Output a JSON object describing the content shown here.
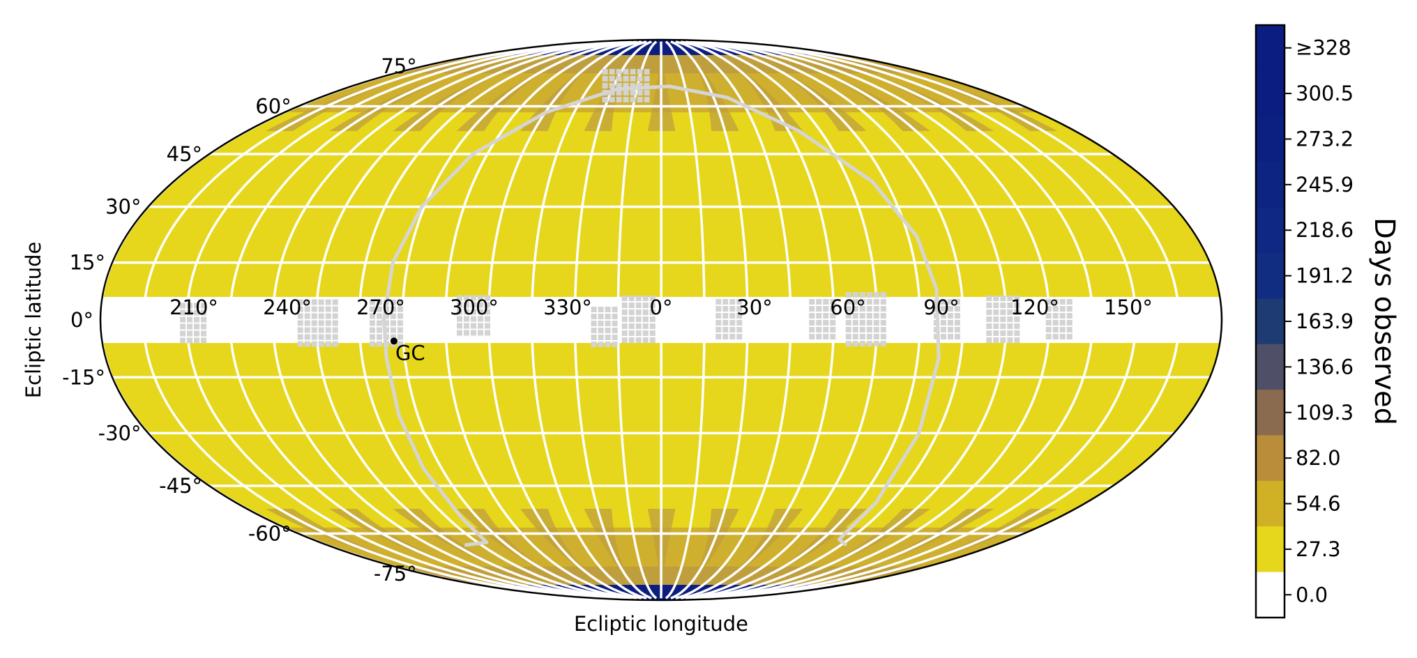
{
  "map": {
    "projection": "mollweide",
    "xlabel": "Ecliptic longitude",
    "ylabel": "Ecliptic latitude",
    "longitude_ticks": [
      {
        "deg": 150,
        "label": "150°"
      },
      {
        "deg": 120,
        "label": "120°"
      },
      {
        "deg": 90,
        "label": "90°"
      },
      {
        "deg": 60,
        "label": "60°"
      },
      {
        "deg": 30,
        "label": "30°"
      },
      {
        "deg": 0,
        "label": "0°"
      },
      {
        "deg": -30,
        "label": "330°"
      },
      {
        "deg": -60,
        "label": "300°"
      },
      {
        "deg": -90,
        "label": "270°"
      },
      {
        "deg": -120,
        "label": "240°"
      },
      {
        "deg": -150,
        "label": "210°"
      }
    ],
    "latitude_ticks": [
      {
        "deg": 75,
        "label": "75°"
      },
      {
        "deg": 60,
        "label": "60°"
      },
      {
        "deg": 45,
        "label": "45°"
      },
      {
        "deg": 30,
        "label": "30°"
      },
      {
        "deg": 15,
        "label": "15°"
      },
      {
        "deg": 0,
        "label": "0°"
      },
      {
        "deg": -15,
        "label": "-15°"
      },
      {
        "deg": -30,
        "label": "-30°"
      },
      {
        "deg": -45,
        "label": "-45°"
      },
      {
        "deg": -60,
        "label": "-60°"
      },
      {
        "deg": -75,
        "label": "-75°"
      }
    ],
    "galactic_center": {
      "label": "GC",
      "lon": -86,
      "lat": -5.5
    },
    "galactic_plane_label": "galactic plane",
    "ecliptic_gap_lat": 6,
    "colors": {
      "base": "#e6d71c",
      "mid": "#cfb02e",
      "overlap": "#bf9f3d",
      "pole": "#0b1d80",
      "gap": "#ffffff",
      "galactic_plane": "#d5d5d5",
      "fields": "#d3d3d3"
    }
  },
  "colorbar": {
    "title": "Days observed",
    "ticks": [
      "≥328",
      "300.5",
      "273.2",
      "245.9",
      "218.6",
      "191.2",
      "163.9",
      "136.6",
      "109.3",
      "82.0",
      "54.6",
      "27.3",
      "0.0"
    ],
    "colors": [
      "#0b1d80",
      "#0b1d80",
      "#0c2082",
      "#0e2483",
      "#0f2883",
      "#112d82",
      "#1e3c73",
      "#4f5067",
      "#8a6b4f",
      "#b98d39",
      "#d0b126",
      "#e6d71c",
      "#ffffff"
    ]
  }
}
